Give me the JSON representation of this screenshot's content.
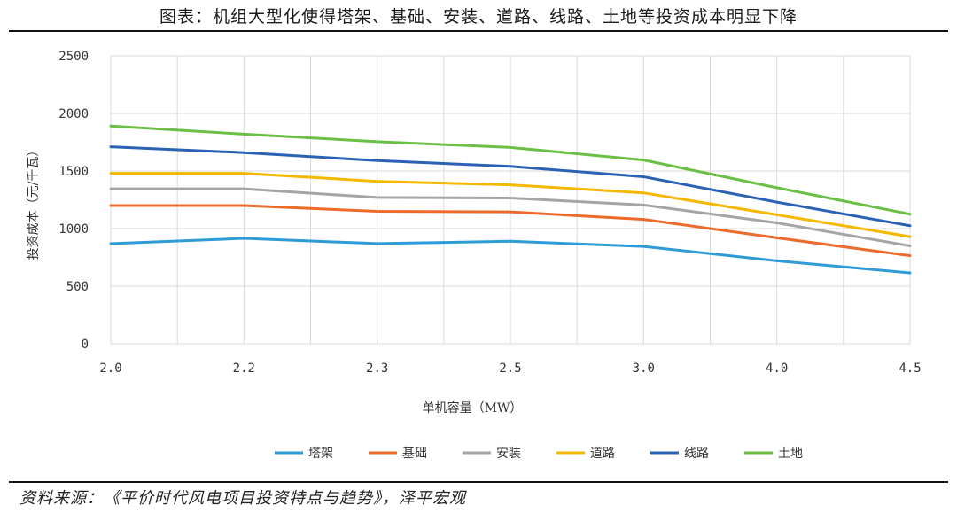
{
  "title": "图表：机组大型化使得塔架、基础、安装、道路、线路、土地等投资成本明显下降",
  "source": "资料来源：《平价时代风电项目投资特点与趋势》，泽平宏观",
  "chart_data": {
    "type": "line",
    "xlabel": "单机容量（MW）",
    "ylabel": "投资成本（元/千瓦）",
    "categories": [
      "2.0",
      "2.2",
      "2.3",
      "2.5",
      "3.0",
      "4.0",
      "4.5"
    ],
    "ylim": [
      0,
      2500
    ],
    "yticks": [
      0,
      500,
      1000,
      1500,
      2000,
      2500
    ],
    "grid": true,
    "legend": "bottom",
    "series": [
      {
        "name": "塔架",
        "color": "#2E9BD6",
        "values": [
          870,
          915,
          870,
          890,
          845,
          720,
          615
        ]
      },
      {
        "name": "基础",
        "color": "#ED6A2A",
        "values": [
          1200,
          1200,
          1150,
          1145,
          1080,
          920,
          765
        ]
      },
      {
        "name": "安装",
        "color": "#A5A5A5",
        "values": [
          1345,
          1345,
          1270,
          1265,
          1205,
          1050,
          850
        ]
      },
      {
        "name": "道路",
        "color": "#F5B800",
        "values": [
          1480,
          1480,
          1410,
          1380,
          1310,
          1120,
          930
        ]
      },
      {
        "name": "线路",
        "color": "#2B62B5",
        "values": [
          1710,
          1660,
          1590,
          1540,
          1450,
          1230,
          1025
        ]
      },
      {
        "name": "土地",
        "color": "#6BBF45",
        "values": [
          1890,
          1820,
          1755,
          1705,
          1595,
          1355,
          1125
        ]
      }
    ]
  }
}
